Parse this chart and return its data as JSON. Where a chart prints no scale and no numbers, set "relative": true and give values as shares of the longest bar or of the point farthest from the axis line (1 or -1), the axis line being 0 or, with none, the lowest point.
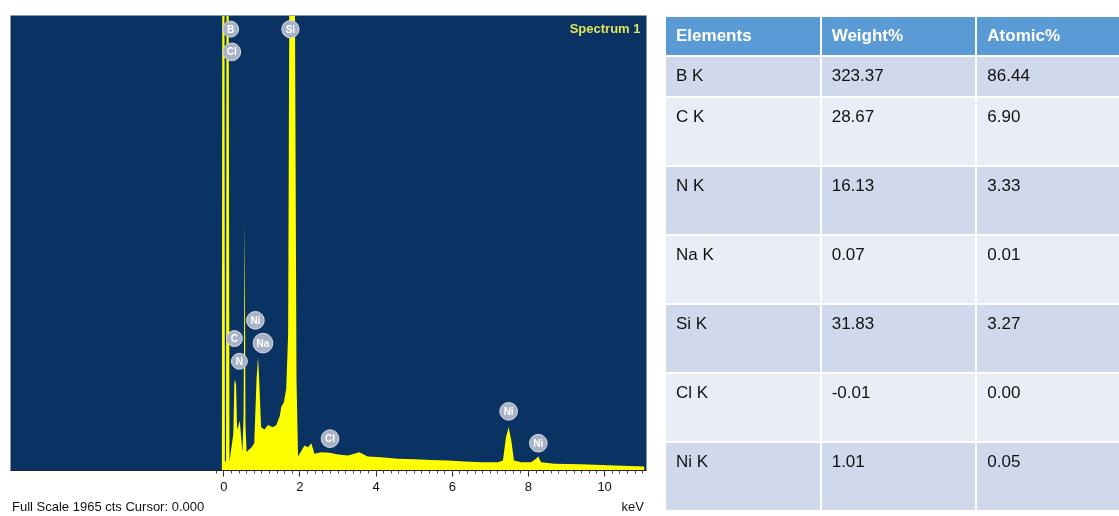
{
  "chart_data": [
    {
      "type": "area",
      "title": "Spectrum 1",
      "xlabel": "keV",
      "relative": true,
      "color": "#ffff00",
      "xlim": [
        -5.6,
        11.1
      ],
      "xticks": [
        0,
        2,
        4,
        6,
        8,
        10
      ],
      "x": [
        -0.05,
        -0.04,
        0.02,
        0.03,
        0.06,
        0.07,
        0.13,
        0.15,
        0.2,
        0.25,
        0.28,
        0.3,
        0.32,
        0.35,
        0.39,
        0.42,
        0.45,
        0.49,
        0.52,
        0.55,
        0.57,
        0.6,
        0.65,
        0.72,
        0.8,
        0.86,
        0.9,
        0.93,
        0.98,
        1.07,
        1.16,
        1.29,
        1.38,
        1.47,
        1.51,
        1.58,
        1.64,
        1.69,
        1.72,
        1.87,
        1.91,
        1.95,
        1.99,
        2.12,
        2.21,
        2.3,
        2.38,
        2.56,
        2.78,
        3.0,
        3.26,
        3.56,
        3.78,
        4.13,
        4.57,
        5.01,
        5.45,
        5.88,
        6.32,
        6.76,
        7.2,
        7.33,
        7.41,
        7.48,
        7.55,
        7.62,
        7.81,
        8.07,
        8.2,
        8.26,
        8.33,
        8.68,
        9.38,
        10.26,
        11.04
      ],
      "values": [
        0,
        1,
        1,
        0.02,
        0.02,
        1,
        1,
        0.02,
        0.05,
        0.08,
        0.2,
        0.19,
        0.2,
        0.09,
        0.1,
        0.11,
        0.08,
        0.04,
        0.12,
        0.55,
        0.1,
        0.04,
        0.045,
        0.05,
        0.06,
        0.2,
        0.25,
        0.2,
        0.095,
        0.09,
        0.1,
        0.095,
        0.1,
        0.12,
        0.14,
        0.15,
        0.18,
        0.3,
        1,
        1,
        0.2,
        0.03,
        0.037,
        0.055,
        0.051,
        0.06,
        0.037,
        0.04,
        0.039,
        0.035,
        0.033,
        0.04,
        0.031,
        0.029,
        0.026,
        0.025,
        0.023,
        0.022,
        0.02,
        0.018,
        0.018,
        0.022,
        0.073,
        0.095,
        0.066,
        0.022,
        0.018,
        0.018,
        0.026,
        0.031,
        0.018,
        0.015,
        0.014,
        0.011,
        0.009
      ],
      "annotations": [
        {
          "text": "B",
          "x": 0.18,
          "y": 0.97
        },
        {
          "text": "Cl",
          "x": 0.21,
          "y": 0.92
        },
        {
          "text": "Si",
          "x": 1.75,
          "y": 0.97
        },
        {
          "text": "Ni",
          "x": 0.83,
          "y": 0.33
        },
        {
          "text": "C",
          "x": 0.28,
          "y": 0.29
        },
        {
          "text": "Na",
          "x": 1.03,
          "y": 0.28
        },
        {
          "text": "N",
          "x": 0.41,
          "y": 0.24
        },
        {
          "text": "Cl",
          "x": 2.79,
          "y": 0.07
        },
        {
          "text": "Ni",
          "x": 7.48,
          "y": 0.13
        },
        {
          "text": "Ni",
          "x": 8.26,
          "y": 0.06
        },
        "Full Scale 1965 cts Cursor: 0.000"
      ]
    },
    {
      "type": "other",
      "ylabel": "Elements",
      "categories": [
        "Weight%",
        "Atomic%"
      ],
      "y_categories": [
        "B K",
        "C K",
        "N K",
        "Na K",
        "Si K",
        "Cl K",
        "Ni K"
      ],
      "cell_labels": [
        [
          "323.37",
          "86.44"
        ],
        [
          "28.67",
          "6.90"
        ],
        [
          "16.13",
          "3.33"
        ],
        [
          "0.07",
          "0.01"
        ],
        [
          "31.83",
          "3.27"
        ],
        [
          "-0.01",
          "0.00"
        ],
        [
          "1.01",
          "0.05"
        ]
      ]
    }
  ]
}
